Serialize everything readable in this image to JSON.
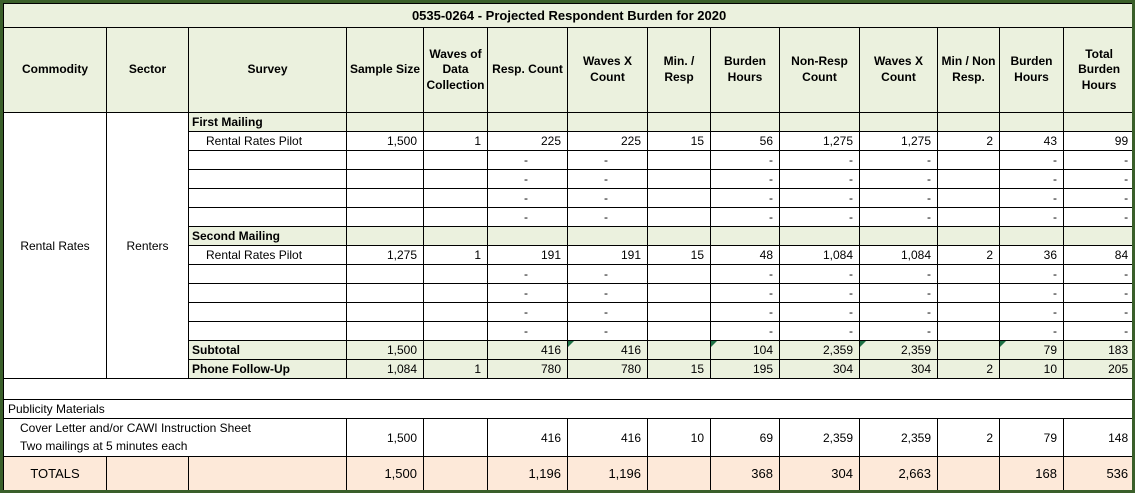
{
  "title": "0535-0264 - Projected Respondent Burden for 2020",
  "columns": [
    "Commodity",
    "Sector",
    "Survey",
    "Sample Size",
    "Waves of Data Collection",
    "Resp. Count",
    "Waves X Count",
    "Min. / Resp",
    "Burden Hours",
    "Non-Resp Count",
    "Waves X Count",
    "Min / Non Resp.",
    "Burden Hours",
    "Total Burden Hours"
  ],
  "group": {
    "commodity": "Rental Rates",
    "sector": "Renters"
  },
  "body_rows": [
    {
      "type": "section",
      "label": "First Mailing"
    },
    {
      "type": "data",
      "survey": "Rental Rates Pilot",
      "values": [
        "1,500",
        "1",
        "225",
        "225",
        "15",
        "56",
        "1,275",
        "1,275",
        "2",
        "43",
        "99"
      ]
    },
    {
      "type": "data",
      "survey": "",
      "values": [
        "",
        "",
        "-",
        "-",
        "",
        "-",
        "-",
        "-",
        "",
        "-",
        "-"
      ]
    },
    {
      "type": "data",
      "survey": "",
      "values": [
        "",
        "",
        "-",
        "-",
        "",
        "-",
        "-",
        "-",
        "",
        "-",
        "-"
      ]
    },
    {
      "type": "data",
      "survey": "",
      "values": [
        "",
        "",
        "-",
        "-",
        "",
        "-",
        "-",
        "-",
        "",
        "-",
        "-"
      ]
    },
    {
      "type": "data",
      "survey": "",
      "values": [
        "",
        "",
        "-",
        "-",
        "",
        "-",
        "-",
        "-",
        "",
        "-",
        "-"
      ]
    },
    {
      "type": "section",
      "label": "Second Mailing"
    },
    {
      "type": "data",
      "survey": "Rental Rates Pilot",
      "values": [
        "1,275",
        "1",
        "191",
        "191",
        "15",
        "48",
        "1,084",
        "1,084",
        "2",
        "36",
        "84"
      ]
    },
    {
      "type": "data",
      "survey": "",
      "values": [
        "",
        "",
        "-",
        "-",
        "",
        "-",
        "-",
        "-",
        "",
        "-",
        "-"
      ]
    },
    {
      "type": "data",
      "survey": "",
      "values": [
        "",
        "",
        "-",
        "-",
        "",
        "-",
        "-",
        "-",
        "",
        "-",
        "-"
      ]
    },
    {
      "type": "data",
      "survey": "",
      "values": [
        "",
        "",
        "-",
        "-",
        "",
        "-",
        "-",
        "-",
        "",
        "-",
        "-"
      ]
    },
    {
      "type": "data",
      "survey": "",
      "values": [
        "",
        "",
        "-",
        "-",
        "",
        "-",
        "-",
        "-",
        "",
        "-",
        "-"
      ]
    },
    {
      "type": "subtotal",
      "label": "Subtotal",
      "values": [
        "1,500",
        "",
        "416",
        "416",
        "",
        "104",
        "2,359",
        "2,359",
        "",
        "79",
        "183"
      ],
      "flags": [
        3,
        5,
        7,
        9
      ]
    },
    {
      "type": "subtotal",
      "label": "Phone Follow-Up",
      "values": [
        "1,084",
        "1",
        "780",
        "780",
        "15",
        "195",
        "304",
        "304",
        "2",
        "10",
        "205"
      ]
    }
  ],
  "footer": {
    "publicity_label": "Publicity Materials",
    "cover_letter": {
      "line1": "Cover Letter and/or CAWI Instruction Sheet",
      "line2": "Two mailings at 5 minutes each",
      "values": [
        "1,500",
        "",
        "416",
        "416",
        "10",
        "69",
        "2,359",
        "2,359",
        "2",
        "79",
        "148"
      ]
    },
    "totals": {
      "label": "TOTALS",
      "values": [
        "1,500",
        "",
        "1,196",
        "1,196",
        "",
        "368",
        "304",
        "2,663",
        "",
        "168",
        "536"
      ]
    }
  },
  "colors": {
    "frame_border": "#3a5f2a",
    "section_fill": "#ebf1de",
    "totals_fill": "#fde9d9",
    "flag_triangle": "#1e7145"
  }
}
